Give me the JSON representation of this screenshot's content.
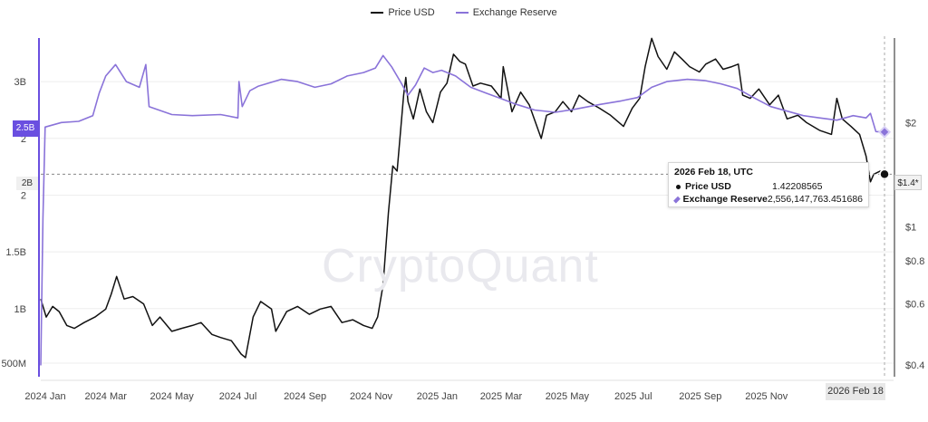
{
  "legend": {
    "price_label": "Price USD",
    "reserve_label": "Exchange Reserve"
  },
  "watermark": "CryptoQuant",
  "tooltip": {
    "date": "2026 Feb 18",
    "tz": ", UTC",
    "price_name": "Price USD",
    "price_value": "1.42208565",
    "reserve_name": "Exchange Reserve",
    "reserve_value": "2,556,147,763.451686"
  },
  "x_badge": "2026 Feb 18",
  "left_badge_reserve": "2.5B",
  "left_badge_crosshair": "2B",
  "right_badge_price": "$1.4*",
  "colors": {
    "price": "#111111",
    "reserve": "#8a73d9",
    "reserve_axis": "#6a4fe0",
    "grid": "#eeeeee"
  },
  "chart_data": {
    "type": "line",
    "x_axis": {
      "ticks": [
        "2024 Jan",
        "2024 Mar",
        "2024 May",
        "2024 Jul",
        "2024 Sep",
        "2024 Nov",
        "2025 Jan",
        "2025 Mar",
        "2025 May",
        "2025 Jul",
        "2025 Sep",
        "2025 Nov",
        "20"
      ]
    },
    "left_axis": {
      "ticks": [
        "3B",
        "2",
        "2",
        "1.5B",
        "1B",
        "500M"
      ],
      "ylim": [
        400000000,
        3400000000
      ]
    },
    "right_axis": {
      "scale": "log",
      "ticks": [
        "$2",
        "$1",
        "$0.8",
        "$0.6",
        "$0.4"
      ],
      "tick_values": [
        2,
        1,
        0.8,
        0.6,
        0.4
      ],
      "ylim": [
        0.37,
        3.55
      ]
    },
    "series": [
      {
        "name": "Price USD",
        "axis": "right",
        "points": [
          [
            "2024-01-01",
            0.62
          ],
          [
            "2024-01-06",
            0.55
          ],
          [
            "2024-01-12",
            0.59
          ],
          [
            "2024-01-18",
            0.57
          ],
          [
            "2024-01-25",
            0.52
          ],
          [
            "2024-02-01",
            0.51
          ],
          [
            "2024-02-10",
            0.53
          ],
          [
            "2024-02-20",
            0.55
          ],
          [
            "2024-03-01",
            0.58
          ],
          [
            "2024-03-06",
            0.64
          ],
          [
            "2024-03-11",
            0.72
          ],
          [
            "2024-03-18",
            0.62
          ],
          [
            "2024-03-26",
            0.63
          ],
          [
            "2024-04-05",
            0.6
          ],
          [
            "2024-04-13",
            0.52
          ],
          [
            "2024-04-20",
            0.55
          ],
          [
            "2024-05-01",
            0.5
          ],
          [
            "2024-05-10",
            0.51
          ],
          [
            "2024-05-20",
            0.52
          ],
          [
            "2024-05-28",
            0.53
          ],
          [
            "2024-06-07",
            0.49
          ],
          [
            "2024-06-15",
            0.48
          ],
          [
            "2024-06-25",
            0.47
          ],
          [
            "2024-07-04",
            0.43
          ],
          [
            "2024-07-08",
            0.42
          ],
          [
            "2024-07-15",
            0.55
          ],
          [
            "2024-07-22",
            0.61
          ],
          [
            "2024-08-01",
            0.58
          ],
          [
            "2024-08-05",
            0.5
          ],
          [
            "2024-08-15",
            0.57
          ],
          [
            "2024-08-25",
            0.59
          ],
          [
            "2024-09-05",
            0.56
          ],
          [
            "2024-09-15",
            0.58
          ],
          [
            "2024-09-25",
            0.59
          ],
          [
            "2024-10-05",
            0.53
          ],
          [
            "2024-10-15",
            0.54
          ],
          [
            "2024-10-25",
            0.52
          ],
          [
            "2024-11-02",
            0.51
          ],
          [
            "2024-11-07",
            0.55
          ],
          [
            "2024-11-12",
            0.68
          ],
          [
            "2024-11-17",
            1.1
          ],
          [
            "2024-11-21",
            1.5
          ],
          [
            "2024-11-25",
            1.45
          ],
          [
            "2024-12-01",
            2.4
          ],
          [
            "2024-12-03",
            2.7
          ],
          [
            "2024-12-05",
            2.3
          ],
          [
            "2024-12-10",
            2.05
          ],
          [
            "2024-12-16",
            2.5
          ],
          [
            "2024-12-22",
            2.15
          ],
          [
            "2024-12-28",
            2.0
          ],
          [
            "2025-01-04",
            2.45
          ],
          [
            "2025-01-10",
            2.6
          ],
          [
            "2025-01-16",
            3.15
          ],
          [
            "2025-01-22",
            3.0
          ],
          [
            "2025-01-27",
            2.95
          ],
          [
            "2025-02-03",
            2.55
          ],
          [
            "2025-02-10",
            2.6
          ],
          [
            "2025-02-20",
            2.55
          ],
          [
            "2025-03-01",
            2.35
          ],
          [
            "2025-03-03",
            2.9
          ],
          [
            "2025-03-11",
            2.15
          ],
          [
            "2025-03-19",
            2.45
          ],
          [
            "2025-03-27",
            2.25
          ],
          [
            "2025-04-07",
            1.8
          ],
          [
            "2025-04-12",
            2.1
          ],
          [
            "2025-04-20",
            2.15
          ],
          [
            "2025-04-27",
            2.3
          ],
          [
            "2025-05-05",
            2.15
          ],
          [
            "2025-05-12",
            2.4
          ],
          [
            "2025-05-20",
            2.3
          ],
          [
            "2025-05-31",
            2.2
          ],
          [
            "2025-06-10",
            2.1
          ],
          [
            "2025-06-22",
            1.95
          ],
          [
            "2025-06-30",
            2.2
          ],
          [
            "2025-07-07",
            2.35
          ],
          [
            "2025-07-12",
            2.9
          ],
          [
            "2025-07-18",
            3.5
          ],
          [
            "2025-07-24",
            3.1
          ],
          [
            "2025-08-01",
            2.85
          ],
          [
            "2025-08-08",
            3.2
          ],
          [
            "2025-08-15",
            3.05
          ],
          [
            "2025-08-22",
            2.9
          ],
          [
            "2025-08-31",
            2.8
          ],
          [
            "2025-09-06",
            2.95
          ],
          [
            "2025-09-15",
            3.05
          ],
          [
            "2025-09-22",
            2.85
          ],
          [
            "2025-09-30",
            2.9
          ],
          [
            "2025-10-06",
            2.95
          ],
          [
            "2025-10-10",
            2.4
          ],
          [
            "2025-10-17",
            2.35
          ],
          [
            "2025-10-25",
            2.5
          ],
          [
            "2025-11-04",
            2.25
          ],
          [
            "2025-11-12",
            2.4
          ],
          [
            "2025-11-20",
            2.05
          ],
          [
            "2025-11-30",
            2.1
          ],
          [
            "2025-12-08",
            2.0
          ],
          [
            "2025-12-20",
            1.9
          ],
          [
            "2025-12-31",
            1.85
          ],
          [
            "2026-01-05",
            2.35
          ],
          [
            "2026-01-10",
            2.05
          ],
          [
            "2026-01-18",
            1.95
          ],
          [
            "2026-01-26",
            1.85
          ],
          [
            "2026-02-01",
            1.6
          ],
          [
            "2026-02-05",
            1.35
          ],
          [
            "2026-02-08",
            1.42
          ],
          [
            "2026-02-14",
            1.45
          ],
          [
            "2026-02-18",
            1.42
          ]
        ]
      },
      {
        "name": "Exchange Reserve",
        "axis": "left",
        "points": [
          [
            "2024-01-01",
            500000000
          ],
          [
            "2024-01-03",
            1800000000
          ],
          [
            "2024-01-05",
            2600000000
          ],
          [
            "2024-01-20",
            2640000000
          ],
          [
            "2024-02-05",
            2650000000
          ],
          [
            "2024-02-18",
            2700000000
          ],
          [
            "2024-02-24",
            2900000000
          ],
          [
            "2024-03-01",
            3050000000
          ],
          [
            "2024-03-10",
            3150000000
          ],
          [
            "2024-03-20",
            3000000000
          ],
          [
            "2024-04-01",
            2950000000
          ],
          [
            "2024-04-07",
            3150000000
          ],
          [
            "2024-04-10",
            2780000000
          ],
          [
            "2024-05-01",
            2710000000
          ],
          [
            "2024-05-20",
            2700000000
          ],
          [
            "2024-06-15",
            2710000000
          ],
          [
            "2024-07-01",
            2680000000
          ],
          [
            "2024-07-02",
            3000000000
          ],
          [
            "2024-07-05",
            2780000000
          ],
          [
            "2024-07-12",
            2920000000
          ],
          [
            "2024-07-20",
            2960000000
          ],
          [
            "2024-08-10",
            3020000000
          ],
          [
            "2024-08-25",
            3000000000
          ],
          [
            "2024-09-10",
            2950000000
          ],
          [
            "2024-09-25",
            2980000000
          ],
          [
            "2024-10-10",
            3050000000
          ],
          [
            "2024-10-25",
            3080000000
          ],
          [
            "2024-11-05",
            3120000000
          ],
          [
            "2024-11-12",
            3230000000
          ],
          [
            "2024-11-20",
            3130000000
          ],
          [
            "2024-11-28",
            3000000000
          ],
          [
            "2024-12-05",
            2880000000
          ],
          [
            "2024-12-12",
            2970000000
          ],
          [
            "2024-12-20",
            3120000000
          ],
          [
            "2024-12-28",
            3080000000
          ],
          [
            "2025-01-05",
            3100000000
          ],
          [
            "2025-01-18",
            3050000000
          ],
          [
            "2025-02-01",
            2950000000
          ],
          [
            "2025-02-15",
            2900000000
          ],
          [
            "2025-03-01",
            2850000000
          ],
          [
            "2025-03-15",
            2800000000
          ],
          [
            "2025-04-01",
            2750000000
          ],
          [
            "2025-04-20",
            2730000000
          ],
          [
            "2025-05-10",
            2760000000
          ],
          [
            "2025-06-01",
            2800000000
          ],
          [
            "2025-06-20",
            2830000000
          ],
          [
            "2025-07-05",
            2860000000
          ],
          [
            "2025-07-18",
            2950000000
          ],
          [
            "2025-08-01",
            3000000000
          ],
          [
            "2025-08-20",
            3020000000
          ],
          [
            "2025-09-05",
            3010000000
          ],
          [
            "2025-09-20",
            2980000000
          ],
          [
            "2025-10-05",
            2940000000
          ],
          [
            "2025-10-20",
            2860000000
          ],
          [
            "2025-11-05",
            2780000000
          ],
          [
            "2025-11-20",
            2740000000
          ],
          [
            "2025-12-05",
            2700000000
          ],
          [
            "2025-12-20",
            2680000000
          ],
          [
            "2026-01-05",
            2660000000
          ],
          [
            "2026-01-20",
            2700000000
          ],
          [
            "2026-02-01",
            2680000000
          ],
          [
            "2026-02-05",
            2720000000
          ],
          [
            "2026-02-10",
            2560000000
          ],
          [
            "2026-02-18",
            2556147763
          ]
        ]
      }
    ]
  }
}
